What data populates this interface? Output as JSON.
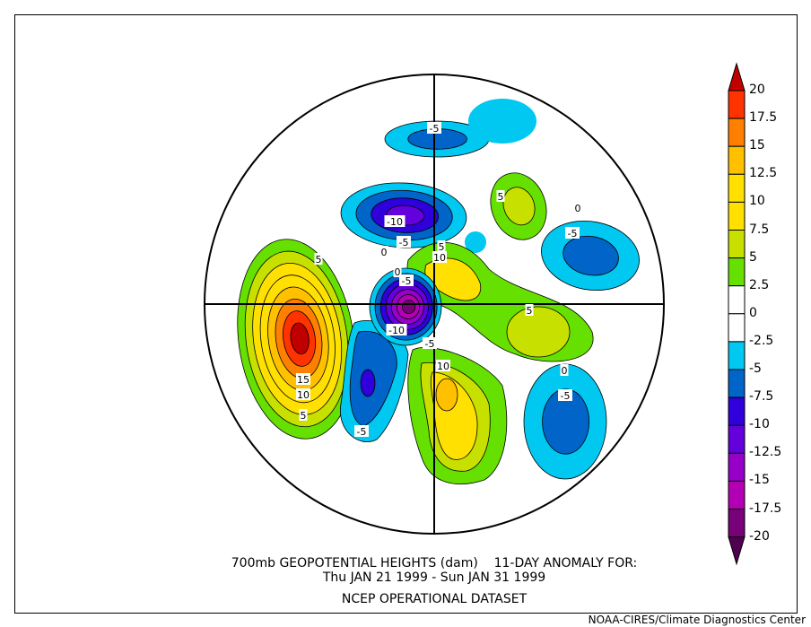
{
  "title": {
    "line1": "700mb GEOPOTENTIAL HEIGHTS (dam)    11-DAY ANOMALY FOR:",
    "line2": "Thu JAN 21 1999 - Sun JAN 31 1999",
    "line3": "NCEP OPERATIONAL DATASET"
  },
  "credit": "NOAA-CIRES/Climate Diagnostics Center",
  "colorbar": {
    "labels": [
      "20",
      "17.5",
      "15",
      "12.5",
      "10",
      "7.5",
      "5",
      "2.5",
      "0",
      "-2.5",
      "-5",
      "-7.5",
      "-10",
      "-12.5",
      "-15",
      "-17.5",
      "-20"
    ],
    "top_arrow_color": "#c00000",
    "bottom_arrow_color": "#500050",
    "colors": [
      "#ff3300",
      "#ff8000",
      "#ffc000",
      "#ffe000",
      "#ffe000",
      "#c8e000",
      "#66e000",
      "#ffffff",
      "#ffffff",
      "#00c8f0",
      "#0064c8",
      "#3000dc",
      "#6400dc",
      "#9600c8",
      "#b400b4",
      "#780078"
    ]
  },
  "contour_labels": [
    "-5",
    "-10",
    "-5",
    "0",
    "5",
    "10",
    "-5",
    "0",
    "-10",
    "5",
    "15",
    "10",
    "5",
    "10",
    "-5",
    "-5",
    "0",
    "5",
    "-5",
    "0",
    "5",
    "-5"
  ]
}
